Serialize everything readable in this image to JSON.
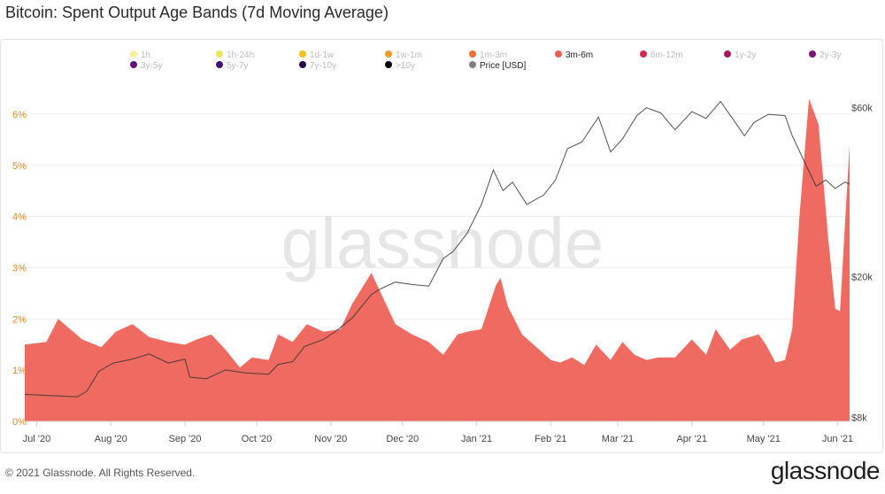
{
  "title": "Bitcoin: Spent Output Age Bands (7d Moving Average)",
  "footer": {
    "copyright": "© 2021 Glassnode. All Rights Reserved.",
    "logo": "glassnode"
  },
  "watermark": "glassnode",
  "chart_data": {
    "type": "area",
    "title": "Bitcoin: Spent Output Age Bands (7d Moving Average)",
    "x_range": [
      "2020-06-26",
      "2021-06-06"
    ],
    "x_tick_labels": [
      "Jul '20",
      "Aug '20",
      "Sep '20",
      "Oct '20",
      "Nov '20",
      "Dec '20",
      "Jan '21",
      "Feb '21",
      "Mar '21",
      "Apr '21",
      "May '21",
      "Jun '21"
    ],
    "y_left": {
      "ticks": [
        "0%",
        "1%",
        "2%",
        "3%",
        "4%",
        "5%",
        "6%"
      ],
      "range": [
        0,
        6.5
      ],
      "unit": "%"
    },
    "y_right": {
      "ticks": [
        "$8k",
        "$20k",
        "$60k"
      ],
      "scale": "log",
      "range": [
        7800,
        68000
      ]
    },
    "grid": "horizontal",
    "legend_position": "top",
    "legend": [
      {
        "label": "1h",
        "color": "#f6f2a0",
        "active": false
      },
      {
        "label": "1h-24h",
        "color": "#ede55a",
        "active": false
      },
      {
        "label": "1d-1w",
        "color": "#f2c31c",
        "active": false
      },
      {
        "label": "1w-1m",
        "color": "#f59a2a",
        "active": false
      },
      {
        "label": "1m-3m",
        "color": "#f26e2c",
        "active": false
      },
      {
        "label": "3m-6m",
        "color": "#ee5d52",
        "active": true
      },
      {
        "label": "6m-12m",
        "color": "#d6254f",
        "active": false
      },
      {
        "label": "1y-2y",
        "color": "#a8185f",
        "active": false
      },
      {
        "label": "2y-3y",
        "color": "#7a1470",
        "active": false
      },
      {
        "label": "3y-5y",
        "color": "#5e137a",
        "active": false
      },
      {
        "label": "5y-7y",
        "color": "#431270",
        "active": false
      },
      {
        "label": "7y-10y",
        "color": "#240b46",
        "active": false
      },
      {
        "label": ">10y",
        "color": "#000000",
        "active": false
      },
      {
        "label": "Price [USD]",
        "color": "#7f7f7f",
        "active": true
      }
    ],
    "series": [
      {
        "name": "3m-6m",
        "axis": "left",
        "color": "#ee5d52",
        "x": [
          "2020-06-26",
          "2020-07-05",
          "2020-07-10",
          "2020-07-20",
          "2020-07-28",
          "2020-08-03",
          "2020-08-10",
          "2020-08-17",
          "2020-08-25",
          "2020-09-01",
          "2020-09-06",
          "2020-09-12",
          "2020-09-18",
          "2020-09-24",
          "2020-09-29",
          "2020-10-06",
          "2020-10-10",
          "2020-10-16",
          "2020-10-22",
          "2020-10-29",
          "2020-11-05",
          "2020-11-10",
          "2020-11-18",
          "2020-11-22",
          "2020-11-28",
          "2020-12-05",
          "2020-12-12",
          "2020-12-18",
          "2020-12-24",
          "2020-12-28",
          "2021-01-03",
          "2021-01-09",
          "2021-01-11",
          "2021-01-14",
          "2021-01-20",
          "2021-01-26",
          "2021-02-01",
          "2021-02-05",
          "2021-02-10",
          "2021-02-15",
          "2021-02-20",
          "2021-02-26",
          "2021-03-03",
          "2021-03-08",
          "2021-03-13",
          "2021-03-18",
          "2021-03-25",
          "2021-04-01",
          "2021-04-07",
          "2021-04-11",
          "2021-04-17",
          "2021-04-22",
          "2021-04-29",
          "2021-05-02",
          "2021-05-06",
          "2021-05-10",
          "2021-05-13",
          "2021-05-16",
          "2021-05-20",
          "2021-05-24",
          "2021-05-28",
          "2021-05-31",
          "2021-06-02",
          "2021-06-04",
          "2021-06-06"
        ],
        "values": [
          1.5,
          1.55,
          2.0,
          1.6,
          1.45,
          1.75,
          1.9,
          1.65,
          1.55,
          1.5,
          1.6,
          1.7,
          1.4,
          1.05,
          1.25,
          1.2,
          1.7,
          1.55,
          1.9,
          1.75,
          1.8,
          2.3,
          2.9,
          2.5,
          1.9,
          1.7,
          1.55,
          1.3,
          1.7,
          1.75,
          1.8,
          2.65,
          2.8,
          2.25,
          1.7,
          1.45,
          1.2,
          1.15,
          1.25,
          1.1,
          1.5,
          1.2,
          1.55,
          1.3,
          1.2,
          1.25,
          1.25,
          1.6,
          1.3,
          1.8,
          1.4,
          1.6,
          1.7,
          1.5,
          1.15,
          1.2,
          1.8,
          4.0,
          6.3,
          5.8,
          3.6,
          2.2,
          2.15,
          3.8,
          5.4
        ]
      },
      {
        "name": "Price [USD]",
        "axis": "right",
        "color": "#7f7f7f",
        "x": [
          "2020-06-26",
          "2020-07-03",
          "2020-07-10",
          "2020-07-18",
          "2020-07-22",
          "2020-07-27",
          "2020-08-02",
          "2020-08-10",
          "2020-08-17",
          "2020-08-25",
          "2020-09-01",
          "2020-09-03",
          "2020-09-10",
          "2020-09-18",
          "2020-09-26",
          "2020-10-06",
          "2020-10-10",
          "2020-10-16",
          "2020-10-21",
          "2020-10-29",
          "2020-11-03",
          "2020-11-10",
          "2020-11-18",
          "2020-11-22",
          "2020-11-28",
          "2020-12-05",
          "2020-12-12",
          "2020-12-18",
          "2020-12-22",
          "2020-12-28",
          "2021-01-03",
          "2021-01-08",
          "2021-01-12",
          "2021-01-16",
          "2021-01-22",
          "2021-01-29",
          "2021-02-03",
          "2021-02-08",
          "2021-02-14",
          "2021-02-21",
          "2021-02-26",
          "2021-03-03",
          "2021-03-09",
          "2021-03-13",
          "2021-03-19",
          "2021-03-25",
          "2021-04-01",
          "2021-04-07",
          "2021-04-13",
          "2021-04-18",
          "2021-04-23",
          "2021-04-27",
          "2021-05-03",
          "2021-05-10",
          "2021-05-13",
          "2021-05-19",
          "2021-05-23",
          "2021-05-27",
          "2021-05-31",
          "2021-06-04",
          "2021-06-06"
        ],
        "values": [
          9300,
          9250,
          9200,
          9150,
          9500,
          10800,
          11400,
          11700,
          12100,
          11400,
          11700,
          10400,
          10300,
          10900,
          10700,
          10600,
          11300,
          11500,
          12700,
          13300,
          14000,
          15300,
          17800,
          18500,
          19300,
          19000,
          18800,
          22500,
          23500,
          26500,
          32000,
          40000,
          35000,
          37000,
          32000,
          34000,
          37500,
          46000,
          48000,
          56500,
          45000,
          49000,
          57000,
          60000,
          58000,
          52000,
          58500,
          56000,
          62500,
          56000,
          50000,
          54500,
          57500,
          57000,
          50000,
          41000,
          36000,
          37500,
          35500,
          37000,
          36500
        ]
      }
    ]
  }
}
